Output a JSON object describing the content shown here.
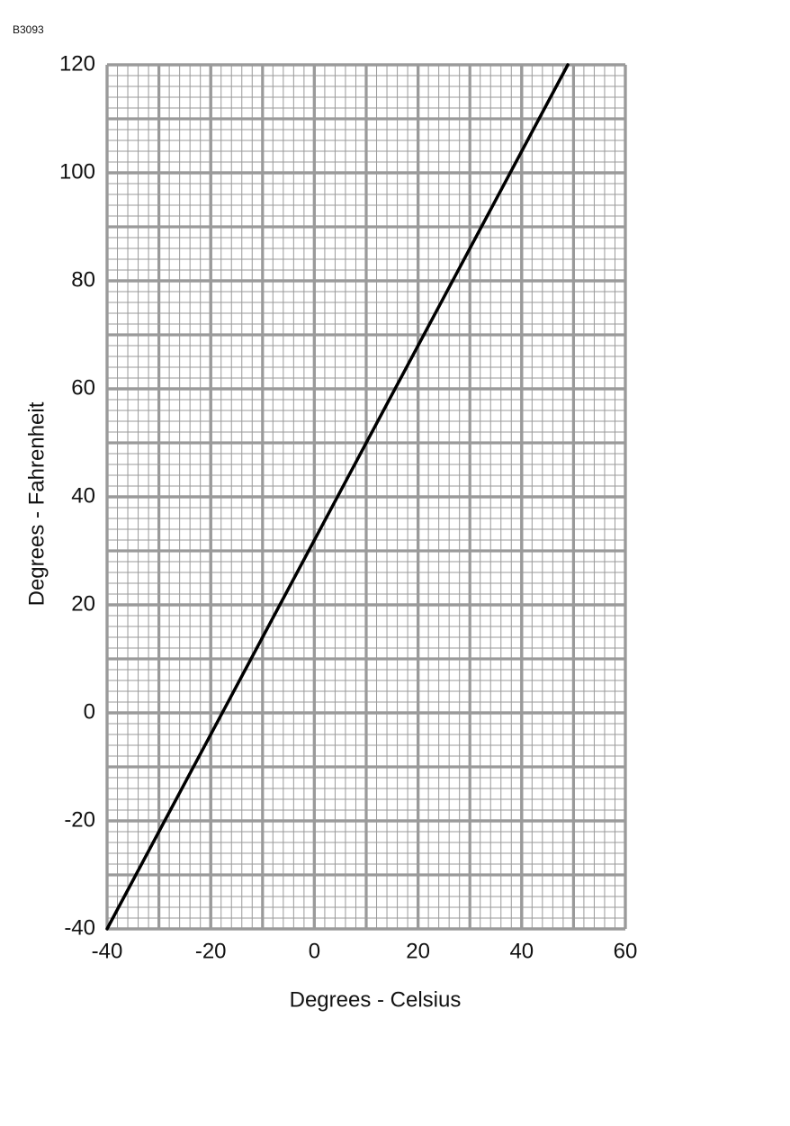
{
  "chart_data": {
    "type": "line",
    "annotation": "B3093",
    "xlabel": "Degrees - Celsius",
    "ylabel": "Degrees - Fahrenheit",
    "x": [
      -40,
      48.9
    ],
    "values": [
      -40,
      120
    ],
    "color": "#000000",
    "xlim": [
      -40,
      60
    ],
    "xticks": [
      -40,
      -20,
      0,
      20,
      40,
      60
    ],
    "ylim": [
      -40,
      120
    ],
    "yticks": [
      -40,
      -20,
      0,
      20,
      40,
      60,
      80,
      100,
      120
    ],
    "grid": {
      "major": 10,
      "minor": 2,
      "color": "#9a9a9a"
    }
  }
}
